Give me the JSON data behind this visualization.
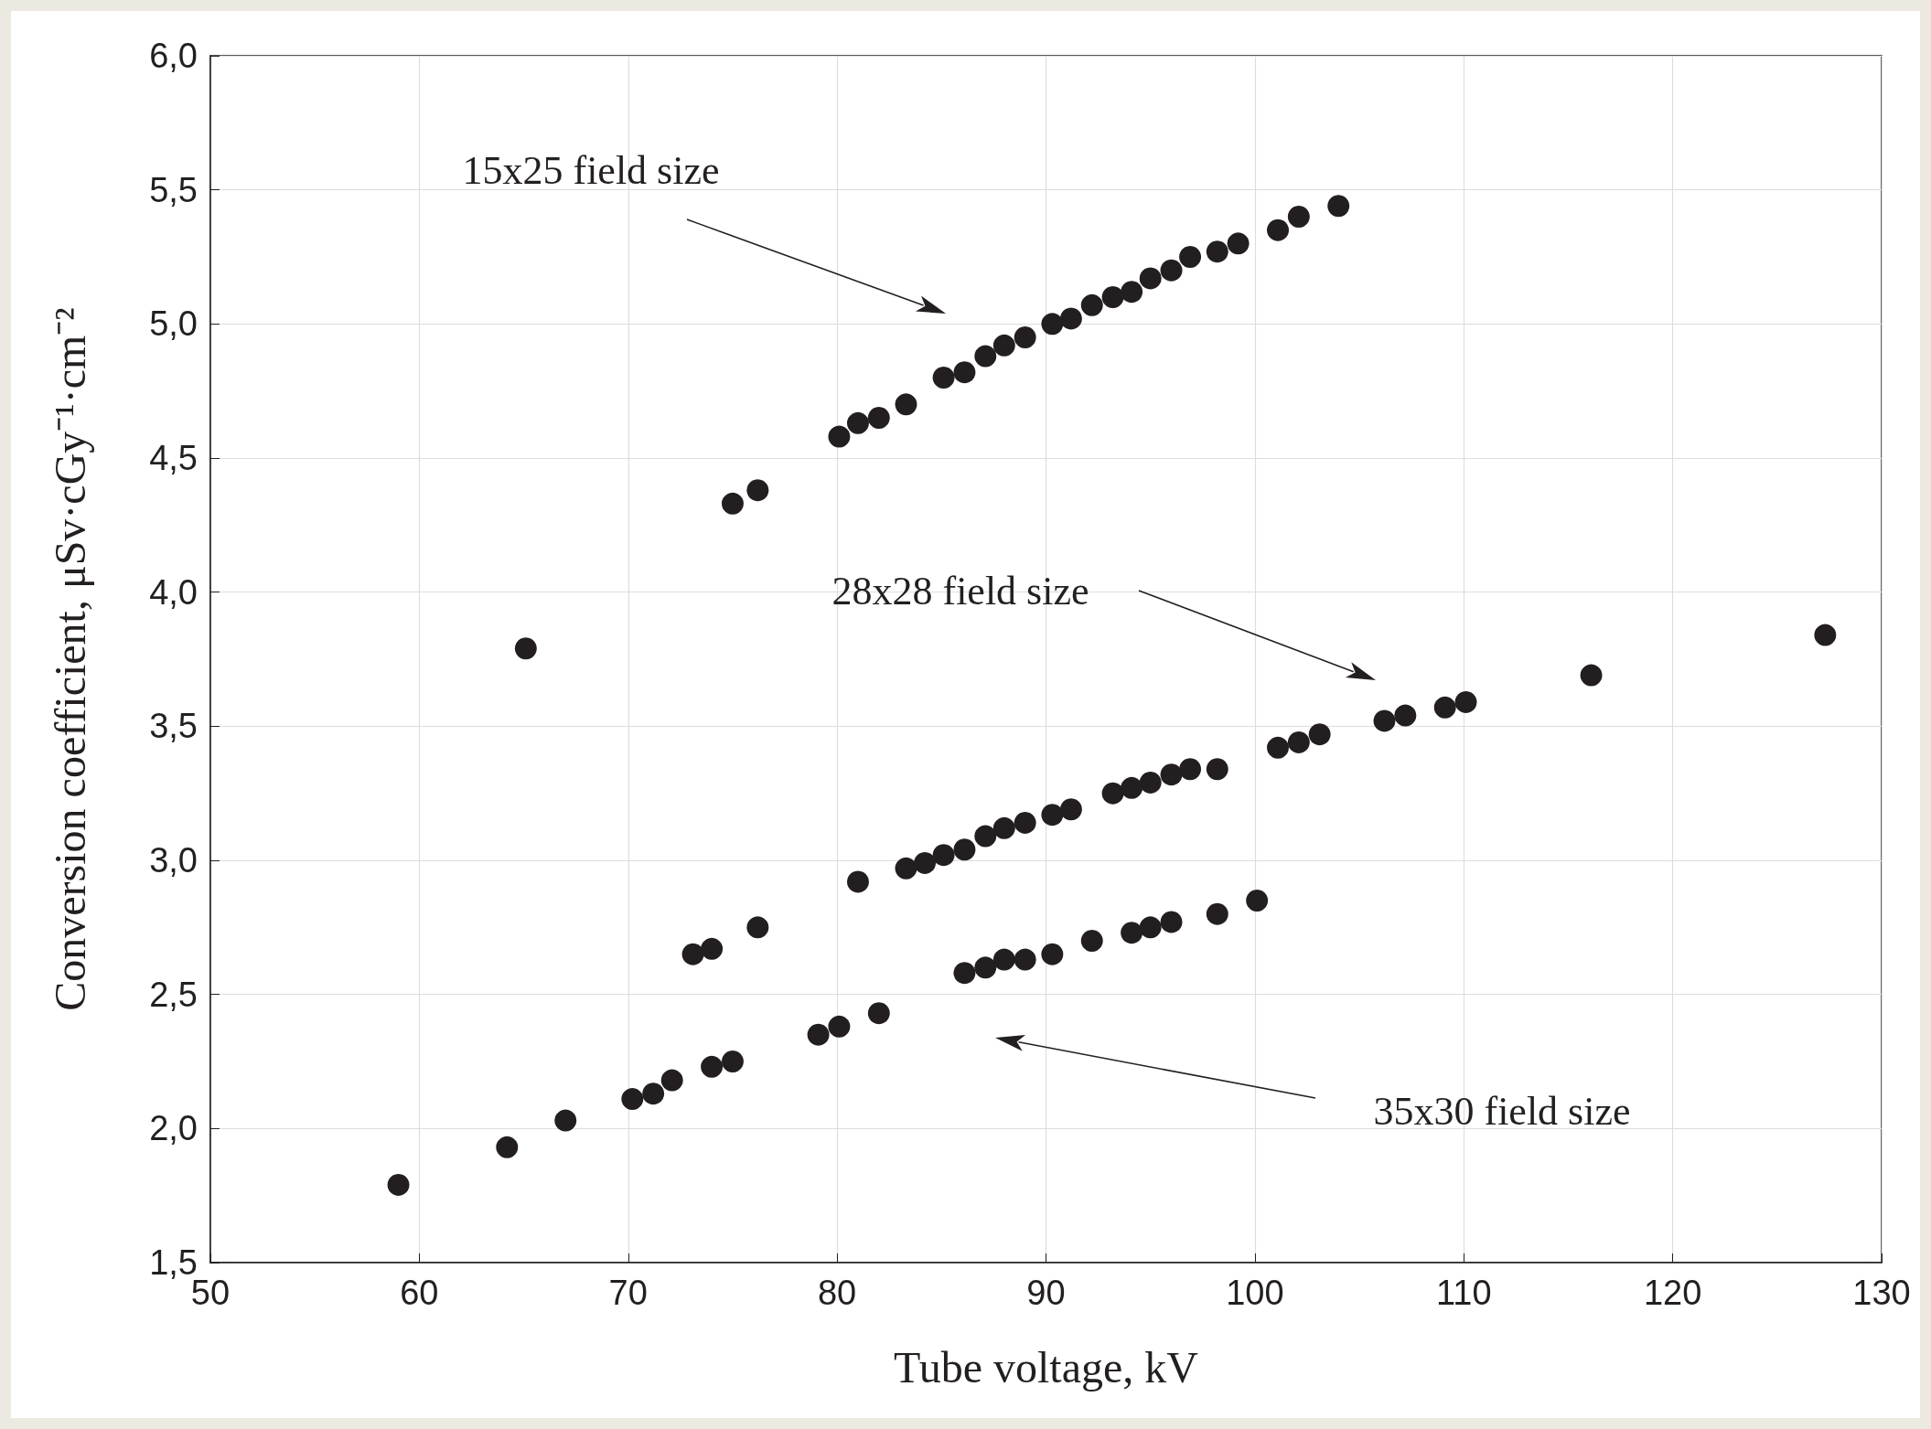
{
  "chart_data": {
    "type": "scatter",
    "xlabel": "Tube voltage, kV",
    "ylabel": "Conversion coefficient, μSv·cGy⁻¹·cm⁻²",
    "xlim": [
      50,
      130
    ],
    "xticks": [
      50,
      60,
      70,
      80,
      90,
      100,
      110,
      120,
      130
    ],
    "ylim": [
      1.5,
      6.0
    ],
    "yticks": [
      {
        "value": 1.5,
        "label": "1,5"
      },
      {
        "value": 2.0,
        "label": "2,0"
      },
      {
        "value": 2.5,
        "label": "2,5"
      },
      {
        "value": 3.0,
        "label": "3,0"
      },
      {
        "value": 3.5,
        "label": "3,5"
      },
      {
        "value": 4.0,
        "label": "4,0"
      },
      {
        "value": 4.5,
        "label": "4,5"
      },
      {
        "value": 5.0,
        "label": "5,0"
      },
      {
        "value": 5.5,
        "label": "5,5"
      },
      {
        "value": 6.0,
        "label": "6,0"
      }
    ],
    "grid": true,
    "marker": "circle",
    "series": [
      {
        "color": "#231f20",
        "x": [
          75.0,
          76.2,
          80.1,
          81.0,
          82.0,
          83.3,
          85.1,
          86.1,
          87.1,
          88.0,
          89.0,
          90.3,
          91.2,
          92.2,
          93.2,
          94.1,
          95.0,
          96.0,
          96.9,
          98.2,
          99.2,
          101.1,
          102.1,
          104.0
        ],
        "values": [
          4.33,
          4.38,
          4.58,
          4.63,
          4.65,
          4.7,
          4.8,
          4.82,
          4.88,
          4.92,
          4.95,
          5.0,
          5.02,
          5.07,
          5.1,
          5.12,
          5.17,
          5.2,
          5.25,
          5.27,
          5.3,
          5.35,
          5.4,
          5.44
        ]
      },
      {
        "color": "#231f20",
        "x": [
          65.1,
          73.1,
          74.0,
          76.2,
          81.0,
          83.3,
          84.2,
          85.1,
          86.1,
          87.1,
          88.0,
          89.0,
          90.3,
          91.2,
          93.2,
          94.1,
          95.0,
          96.0,
          96.9,
          98.2,
          101.1,
          102.1,
          103.1,
          106.2,
          107.2,
          109.1,
          110.1,
          116.1,
          127.3
        ],
        "values": [
          3.79,
          2.65,
          2.67,
          2.75,
          2.92,
          2.97,
          2.99,
          3.02,
          3.04,
          3.09,
          3.12,
          3.14,
          3.17,
          3.19,
          3.25,
          3.27,
          3.29,
          3.32,
          3.34,
          3.34,
          3.42,
          3.44,
          3.47,
          3.52,
          3.54,
          3.57,
          3.59,
          3.69,
          3.84
        ]
      },
      {
        "color": "#231f20",
        "x": [
          59.0,
          64.2,
          67.0,
          70.2,
          71.2,
          72.1,
          74.0,
          75.0,
          79.1,
          80.1,
          82.0,
          86.1,
          87.1,
          88.0,
          89.0,
          90.3,
          92.2,
          94.1,
          95.0,
          96.0,
          98.2,
          100.1
        ],
        "values": [
          1.79,
          1.93,
          2.03,
          2.11,
          2.13,
          2.18,
          2.23,
          2.25,
          2.35,
          2.38,
          2.43,
          2.58,
          2.6,
          2.63,
          2.63,
          2.65,
          2.7,
          2.73,
          2.75,
          2.77,
          2.8,
          2.85
        ]
      }
    ],
    "annotations": [
      "15x25 field size",
      "28x28 field size",
      "35x30 field size"
    ]
  }
}
